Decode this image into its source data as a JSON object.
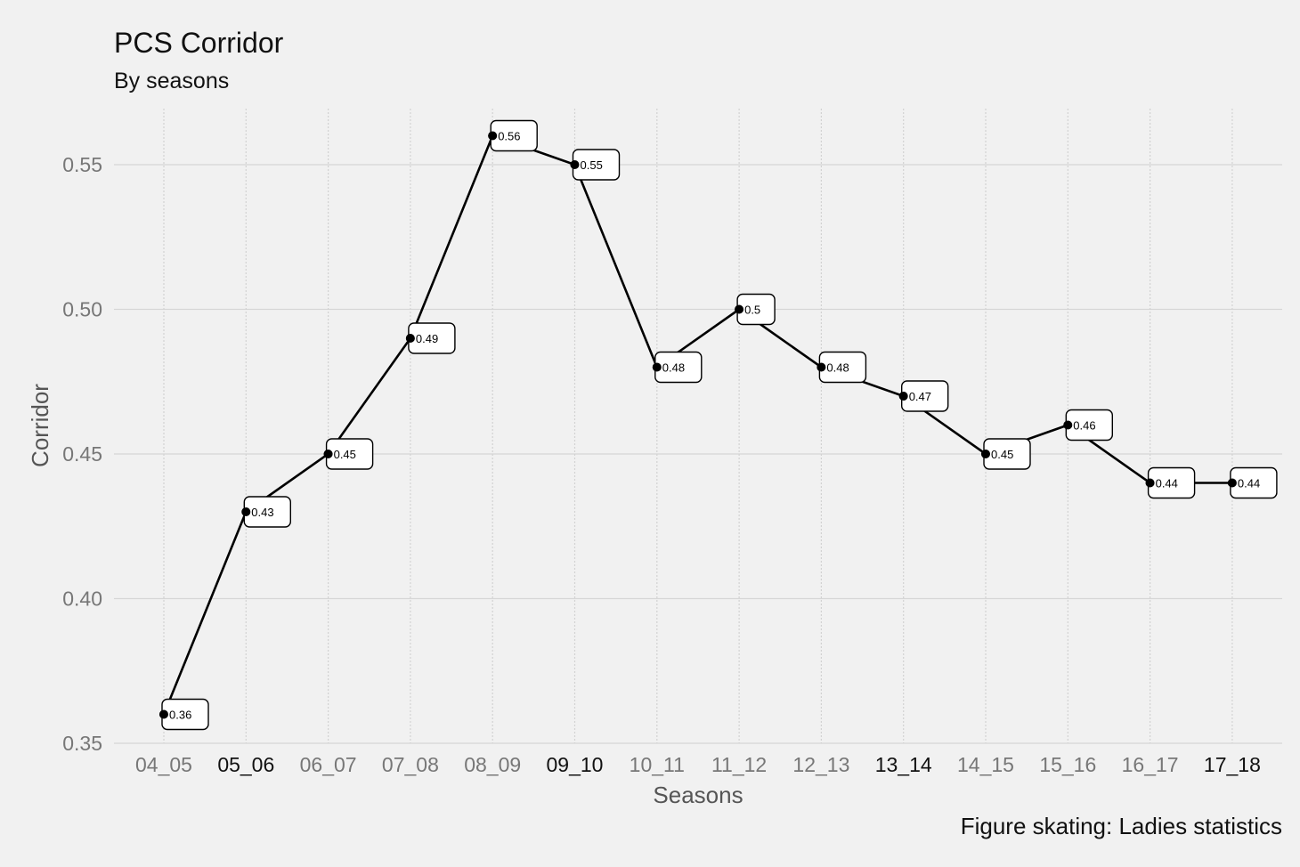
{
  "chart_data": {
    "type": "line",
    "title": "PCS Corridor",
    "subtitle": "By seasons",
    "caption": "Figure skating: Ladies statistics",
    "xlabel": "Seasons",
    "ylabel": "Corridor",
    "categories": [
      "04_05",
      "05_06",
      "06_07",
      "07_08",
      "08_09",
      "09_10",
      "10_11",
      "11_12",
      "12_13",
      "13_14",
      "14_15",
      "15_16",
      "16_17",
      "17_18"
    ],
    "bold_categories": [
      "05_06",
      "09_10",
      "13_14",
      "17_18"
    ],
    "series": [
      {
        "values": [
          0.36,
          0.43,
          0.45,
          0.49,
          0.56,
          0.55,
          0.48,
          0.5,
          0.48,
          0.47,
          0.45,
          0.46,
          0.44,
          0.44
        ],
        "labels": [
          "0.36",
          "0.43",
          "0.45",
          "0.49",
          "0.56",
          "0.55",
          "0.48",
          "0.5",
          "0.48",
          "0.47",
          "0.45",
          "0.46",
          "0.44",
          "0.44"
        ],
        "color": "#000000"
      }
    ],
    "yticks": [
      0.35,
      0.4,
      0.45,
      0.5,
      0.55
    ],
    "ytick_labels": [
      "0.35",
      "0.40",
      "0.45",
      "0.50",
      "0.55"
    ],
    "ylim": [
      0.35,
      0.565
    ],
    "grid": true,
    "legend": "none",
    "colors": {
      "background": "#f1f1f1",
      "grid": "#d6d6d6",
      "line": "#000000",
      "label_box": "#ffffff"
    }
  }
}
